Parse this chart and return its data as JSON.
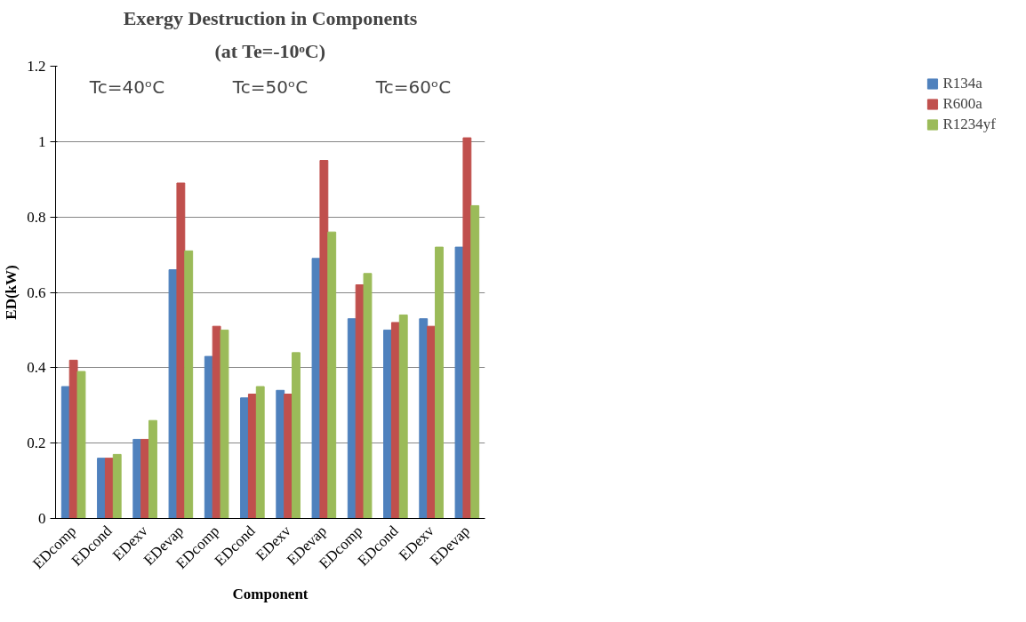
{
  "chart_data": {
    "type": "bar",
    "title": "Exergy Destruction in Components",
    "subtitle": "(at Te=-10ᵒC)",
    "xlabel": "Component",
    "ylabel": "ED(kW)",
    "categories": [
      "EDcomp",
      "EDcond",
      "EDexv",
      "EDevap",
      "EDcomp",
      "EDcond",
      "EDexv",
      "EDevap",
      "EDcomp",
      "EDcond",
      "EDexv",
      "EDevap"
    ],
    "series": [
      {
        "name": "R134a",
        "color": "#4f81bd",
        "values": [
          0.35,
          0.16,
          0.21,
          0.66,
          0.43,
          0.32,
          0.34,
          0.69,
          0.53,
          0.5,
          0.53,
          0.72
        ]
      },
      {
        "name": "R600a",
        "color": "#c0504d",
        "values": [
          0.42,
          0.16,
          0.21,
          0.89,
          0.51,
          0.33,
          0.33,
          0.95,
          0.62,
          0.52,
          0.51,
          1.01
        ]
      },
      {
        "name": "R1234yf",
        "color": "#9bbb59",
        "values": [
          0.39,
          0.17,
          0.26,
          0.71,
          0.5,
          0.35,
          0.44,
          0.76,
          0.65,
          0.54,
          0.72,
          0.83
        ]
      }
    ],
    "ylim": [
      0,
      1.2
    ],
    "yticks": [
      0,
      0.2,
      0.4,
      {
        "value": 0.6,
        "label": "0.6"
      },
      0.8,
      1,
      1.2
    ],
    "grid": "y",
    "legend": "right",
    "annotations": [
      "Tc=40ᵒC",
      "Tc=50ᵒC",
      "Tc=60ᵒC"
    ]
  }
}
